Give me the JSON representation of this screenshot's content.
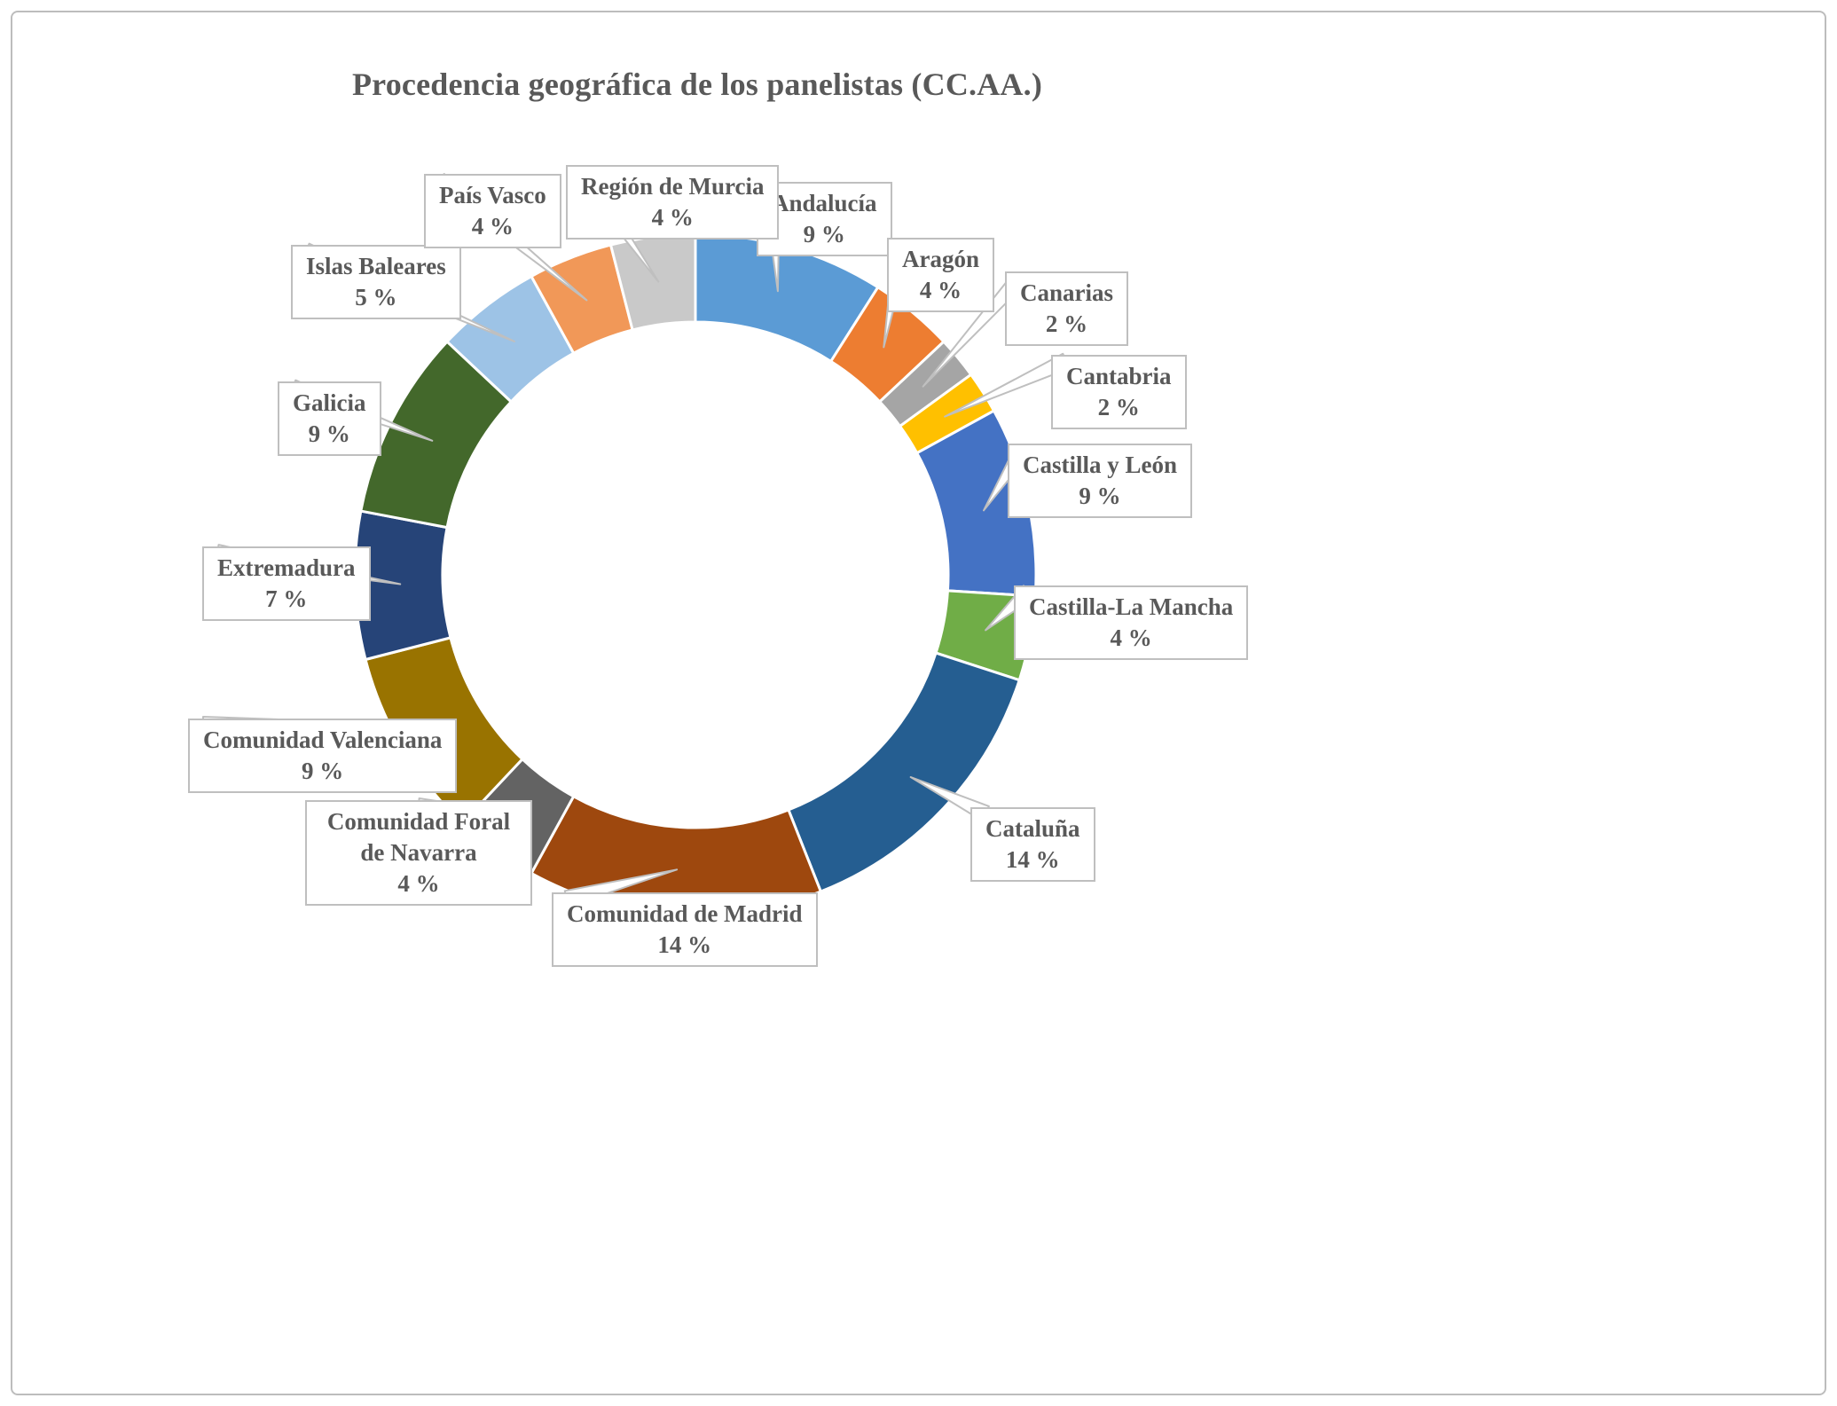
{
  "frame": {
    "border_color": "#BDBDBD",
    "background_color": "#FFFFFF"
  },
  "text_colors": {
    "title": "#595959",
    "labels": "#595959",
    "callout_border": "#BFBFBF",
    "leader_line": "#BFBFBF"
  },
  "chart_data": {
    "type": "pie",
    "subtype": "donut",
    "title": "Procedencia geográfica de los panelistas (CC.AA.)",
    "unit": "%",
    "total": 100,
    "start_angle_deg": 0,
    "direction": "clockwise",
    "inner_radius_ratio": 0.74,
    "legend_position": "none",
    "label_style": "callout-boxes-with-leader-lines",
    "segments": [
      {
        "label": "Andalucía",
        "value": 9,
        "value_label": "9 %",
        "color": "#5B9BD5"
      },
      {
        "label": "Aragón",
        "value": 4,
        "value_label": "4 %",
        "color": "#ED7D31"
      },
      {
        "label": "Canarias",
        "value": 2,
        "value_label": "2 %",
        "color": "#A5A5A5"
      },
      {
        "label": "Cantabria",
        "value": 2,
        "value_label": "2 %",
        "color": "#FFC000"
      },
      {
        "label": "Castilla y León",
        "value": 9,
        "value_label": "9 %",
        "color": "#4472C4"
      },
      {
        "label": "Castilla-La Mancha",
        "value": 4,
        "value_label": "4 %",
        "color": "#70AD47"
      },
      {
        "label": "Cataluña",
        "value": 14,
        "value_label": "14 %",
        "color": "#255E91"
      },
      {
        "label": "Comunidad de Madrid",
        "value": 14,
        "value_label": "14 %",
        "color": "#9E480E"
      },
      {
        "label": "Comunidad Foral de Navarra",
        "value": 4,
        "value_label": "4 %",
        "color": "#636363"
      },
      {
        "label": "Comunidad Valenciana",
        "value": 9,
        "value_label": "9 %",
        "color": "#997300"
      },
      {
        "label": "Extremadura",
        "value": 7,
        "value_label": "7 %",
        "color": "#264478"
      },
      {
        "label": "Galicia",
        "value": 9,
        "value_label": "9 %",
        "color": "#43682B"
      },
      {
        "label": "Islas Baleares",
        "value": 5,
        "value_label": "5 %",
        "color": "#9DC3E6"
      },
      {
        "label": "País Vasco",
        "value": 4,
        "value_label": "4 %",
        "color": "#F19858"
      },
      {
        "label": "Región de Murcia",
        "value": 4,
        "value_label": "4 %",
        "color": "#C9C9C9"
      }
    ]
  }
}
